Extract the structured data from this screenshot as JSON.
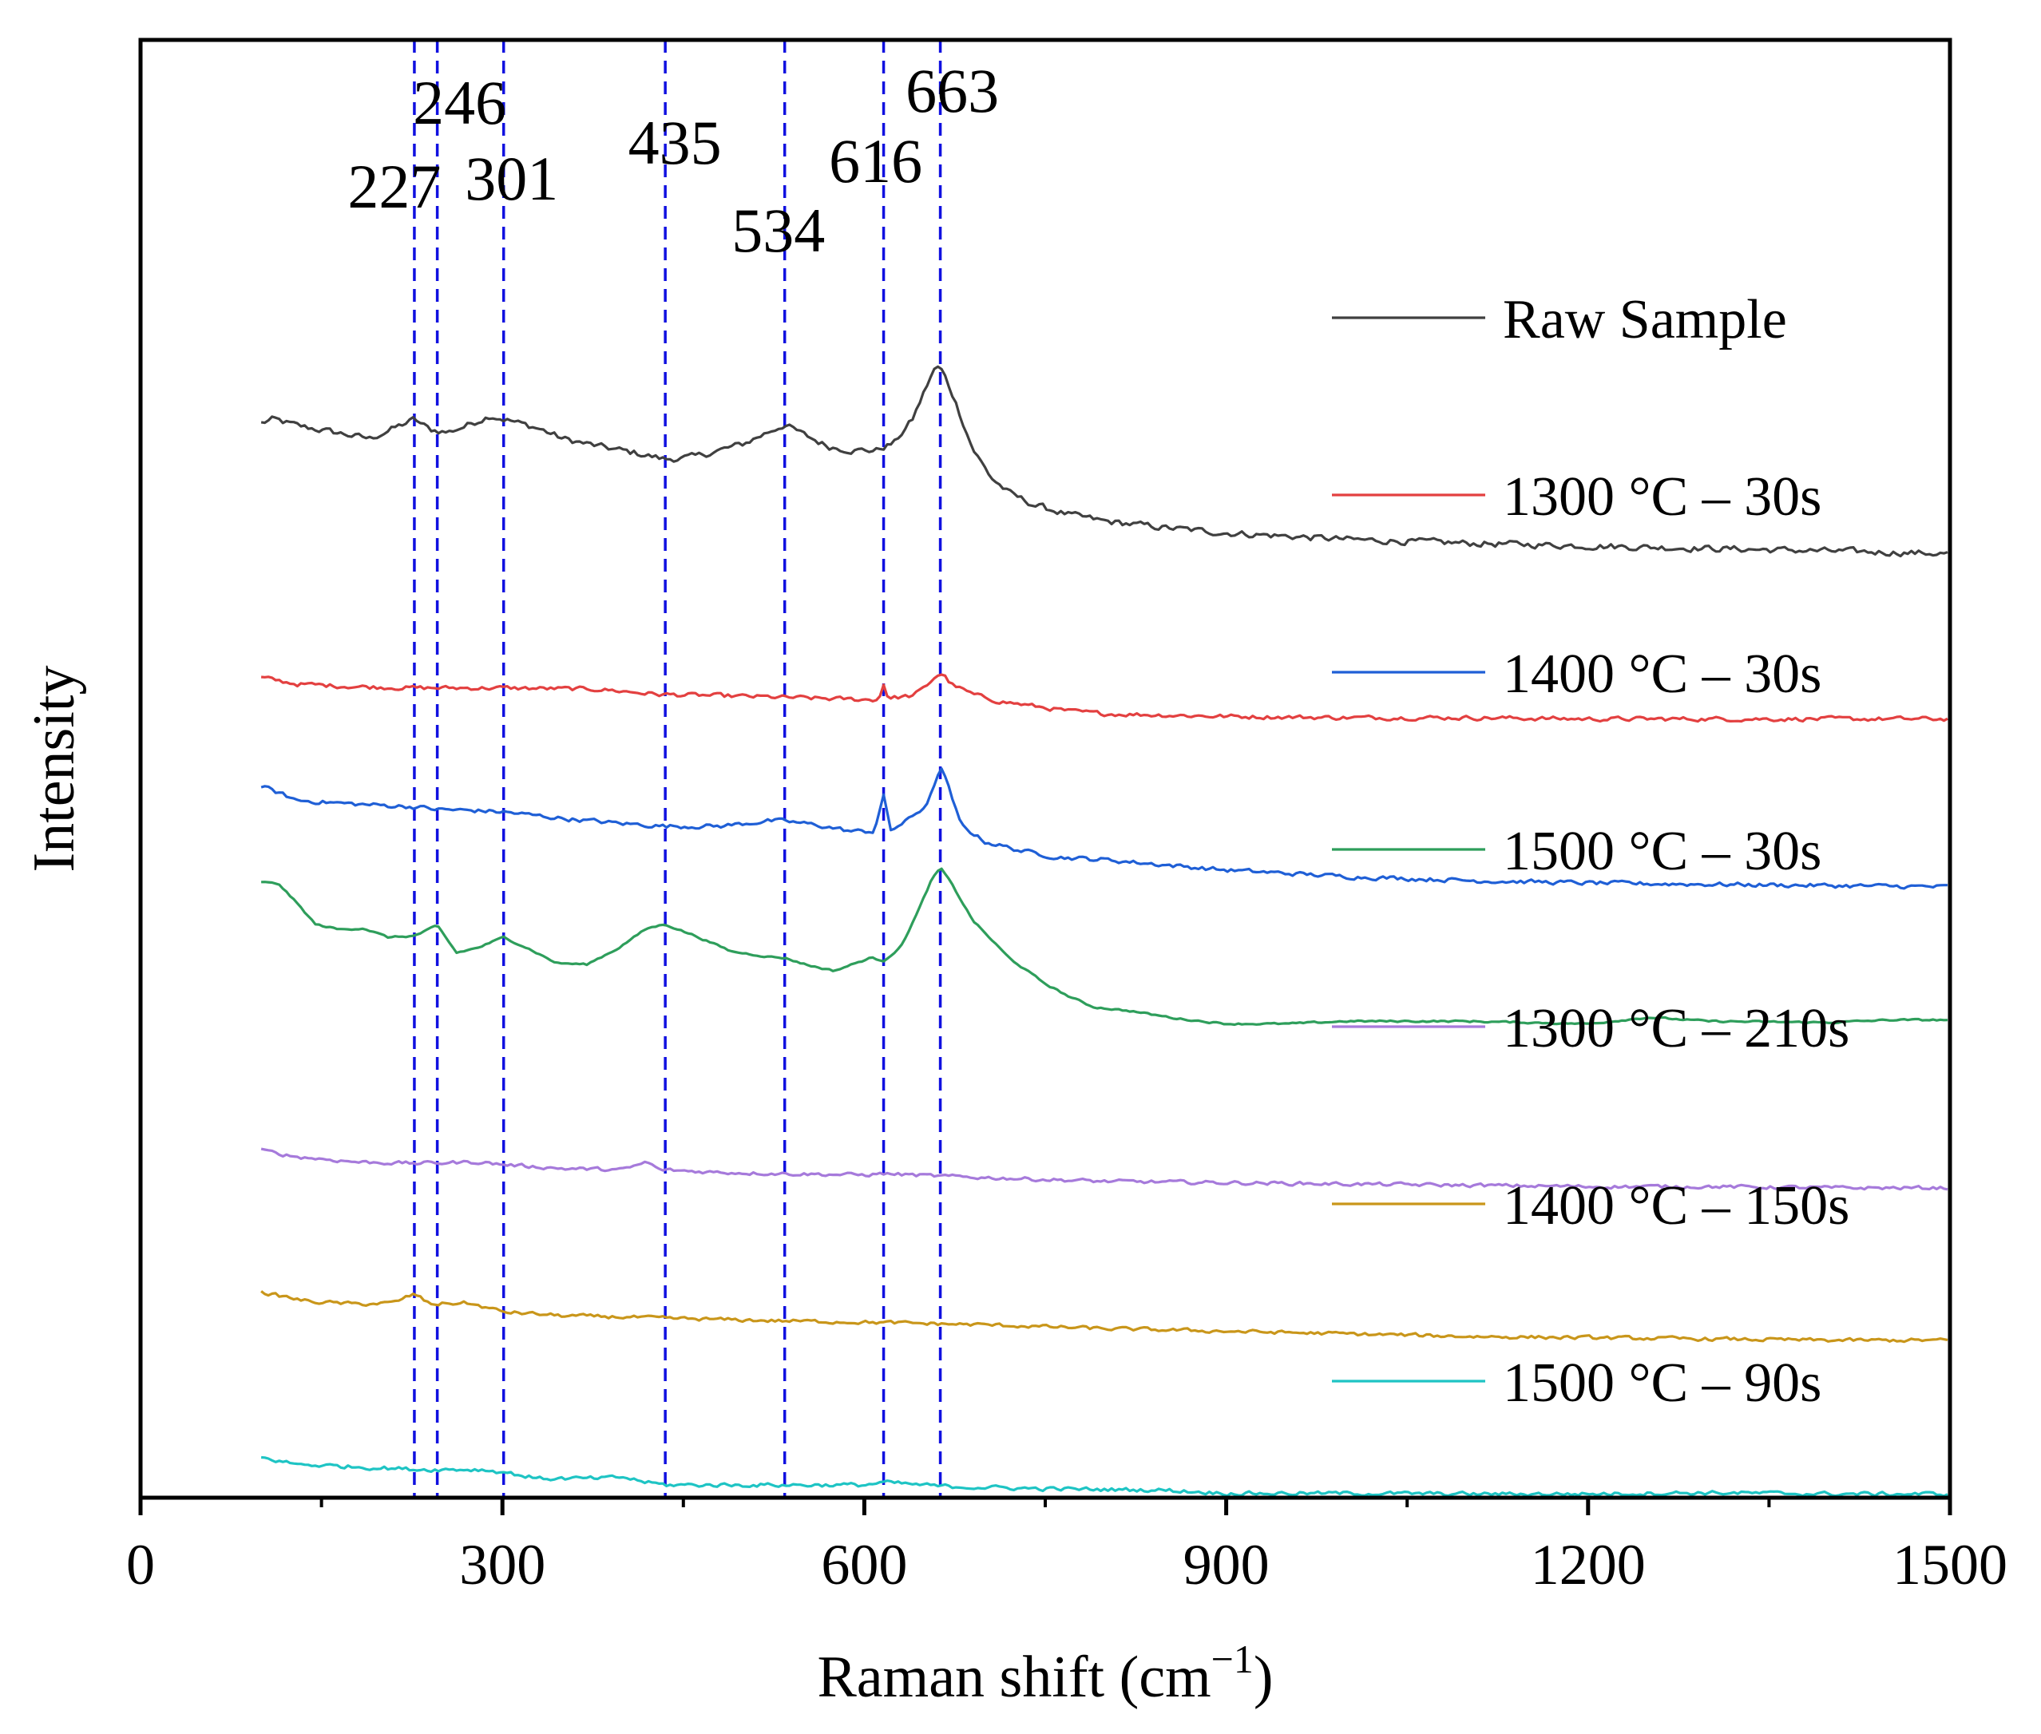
{
  "chart_data": {
    "type": "line",
    "xlabel": "Raman shift (cm",
    "xlabel_sup": "−1",
    "xlabel_close": ")",
    "ylabel": "Intensity",
    "xlim": [
      0,
      1500
    ],
    "ylim": [
      0,
      100
    ],
    "xticks": [
      "0",
      "300",
      "600",
      "900",
      "1200",
      "1500"
    ],
    "xtick_values": [
      0,
      300,
      600,
      900,
      1200,
      1500
    ],
    "grid": false,
    "legend_position": "right",
    "peak_lines": [
      {
        "label": "227",
        "x": 227
      },
      {
        "label": "246",
        "x": 246
      },
      {
        "label": "301",
        "x": 301
      },
      {
        "label": "435",
        "x": 435
      },
      {
        "label": "534",
        "x": 534
      },
      {
        "label": "616",
        "x": 616
      },
      {
        "label": "663",
        "x": 663
      }
    ],
    "series": [
      {
        "name": "Raw Sample",
        "color": "#404040",
        "noise": 0.45,
        "points": [
          [
            100,
            83
          ],
          [
            110,
            83.3
          ],
          [
            130,
            82.8
          ],
          [
            160,
            82.3
          ],
          [
            190,
            81.8
          ],
          [
            215,
            82.8
          ],
          [
            227,
            83.3
          ],
          [
            240,
            82.5
          ],
          [
            255,
            82.3
          ],
          [
            270,
            82.8
          ],
          [
            290,
            83.6
          ],
          [
            310,
            83.1
          ],
          [
            330,
            82.6
          ],
          [
            350,
            81.8
          ],
          [
            380,
            81.2
          ],
          [
            410,
            80.7
          ],
          [
            435,
            80.2
          ],
          [
            460,
            80.4
          ],
          [
            480,
            80.9
          ],
          [
            500,
            81.4
          ],
          [
            520,
            82.3
          ],
          [
            534,
            82.9
          ],
          [
            550,
            82.1
          ],
          [
            570,
            81.2
          ],
          [
            590,
            80.9
          ],
          [
            610,
            80.9
          ],
          [
            625,
            81.5
          ],
          [
            640,
            83.3
          ],
          [
            650,
            85.5
          ],
          [
            656,
            86.8
          ],
          [
            660,
            87.4
          ],
          [
            665,
            87.0
          ],
          [
            675,
            84.8
          ],
          [
            690,
            81.0
          ],
          [
            705,
            78.8
          ],
          [
            720,
            77.6
          ],
          [
            740,
            76.7
          ],
          [
            770,
            75.9
          ],
          [
            800,
            75.4
          ],
          [
            850,
            74.9
          ],
          [
            900,
            74.5
          ],
          [
            1000,
            74.0
          ],
          [
            1100,
            73.7
          ],
          [
            1200,
            73.5
          ],
          [
            1300,
            73.3
          ],
          [
            1400,
            73.1
          ],
          [
            1500,
            72.9
          ]
        ]
      },
      {
        "name": "1300 °C – 30s",
        "color": "#e34040",
        "noise": 0.3,
        "points": [
          [
            100,
            63.3
          ],
          [
            130,
            62.8
          ],
          [
            180,
            62.6
          ],
          [
            230,
            62.5
          ],
          [
            300,
            62.5
          ],
          [
            380,
            62.4
          ],
          [
            430,
            62.0
          ],
          [
            480,
            61.9
          ],
          [
            520,
            61.8
          ],
          [
            560,
            61.7
          ],
          [
            600,
            61.6
          ],
          [
            612,
            61.6
          ],
          [
            616,
            62.8
          ],
          [
            620,
            61.7
          ],
          [
            640,
            61.9
          ],
          [
            650,
            62.5
          ],
          [
            660,
            63.5
          ],
          [
            665,
            63.6
          ],
          [
            672,
            62.8
          ],
          [
            690,
            62.0
          ],
          [
            710,
            61.5
          ],
          [
            740,
            61.1
          ],
          [
            770,
            60.7
          ],
          [
            800,
            60.5
          ],
          [
            900,
            60.3
          ],
          [
            1000,
            60.2
          ],
          [
            1100,
            60.2
          ],
          [
            1200,
            60.1
          ],
          [
            1300,
            60.1
          ],
          [
            1400,
            60.1
          ],
          [
            1500,
            60.1
          ]
        ]
      },
      {
        "name": "1400 °C – 30s",
        "color": "#1f5fd6",
        "noise": 0.3,
        "points": [
          [
            100,
            54.9
          ],
          [
            130,
            53.8
          ],
          [
            180,
            53.5
          ],
          [
            227,
            53.3
          ],
          [
            246,
            53.1
          ],
          [
            280,
            53.0
          ],
          [
            301,
            52.9
          ],
          [
            350,
            52.4
          ],
          [
            400,
            52.0
          ],
          [
            435,
            51.8
          ],
          [
            480,
            51.8
          ],
          [
            520,
            52.2
          ],
          [
            534,
            52.2
          ],
          [
            560,
            51.9
          ],
          [
            590,
            51.4
          ],
          [
            608,
            51.4
          ],
          [
            616,
            54.1
          ],
          [
            622,
            51.5
          ],
          [
            635,
            52.2
          ],
          [
            650,
            53.3
          ],
          [
            658,
            54.8
          ],
          [
            663,
            56.5
          ],
          [
            668,
            55.3
          ],
          [
            680,
            51.9
          ],
          [
            700,
            50.6
          ],
          [
            730,
            49.9
          ],
          [
            760,
            49.4
          ],
          [
            800,
            49.2
          ],
          [
            850,
            48.8
          ],
          [
            900,
            48.4
          ],
          [
            1000,
            47.9
          ],
          [
            1100,
            47.6
          ],
          [
            1200,
            47.4
          ],
          [
            1300,
            47.3
          ],
          [
            1400,
            47.2
          ],
          [
            1500,
            47.1
          ]
        ]
      },
      {
        "name": "1500 °C – 30s",
        "color": "#2e9e5b",
        "noise": 0.12,
        "points": [
          [
            100,
            47.5
          ],
          [
            115,
            47.3
          ],
          [
            130,
            45.8
          ],
          [
            145,
            44.2
          ],
          [
            165,
            43.8
          ],
          [
            185,
            43.9
          ],
          [
            205,
            43.2
          ],
          [
            227,
            43.3
          ],
          [
            246,
            44.1
          ],
          [
            262,
            42.0
          ],
          [
            280,
            42.4
          ],
          [
            301,
            43.2
          ],
          [
            320,
            42.4
          ],
          [
            345,
            41.2
          ],
          [
            370,
            41.1
          ],
          [
            395,
            42.3
          ],
          [
            420,
            43.9
          ],
          [
            435,
            44.2
          ],
          [
            460,
            43.3
          ],
          [
            490,
            42.1
          ],
          [
            520,
            41.7
          ],
          [
            534,
            41.6
          ],
          [
            555,
            41.0
          ],
          [
            575,
            40.6
          ],
          [
            590,
            41.1
          ],
          [
            605,
            41.6
          ],
          [
            616,
            41.4
          ],
          [
            630,
            42.4
          ],
          [
            645,
            45.3
          ],
          [
            655,
            47.5
          ],
          [
            663,
            48.6
          ],
          [
            672,
            47.4
          ],
          [
            690,
            44.5
          ],
          [
            720,
            41.6
          ],
          [
            750,
            39.6
          ],
          [
            770,
            38.6
          ],
          [
            790,
            37.8
          ],
          [
            820,
            37.5
          ],
          [
            860,
            36.9
          ],
          [
            900,
            36.5
          ],
          [
            950,
            36.5
          ],
          [
            1000,
            36.7
          ],
          [
            1100,
            36.7
          ],
          [
            1200,
            36.5
          ],
          [
            1250,
            37.0
          ],
          [
            1300,
            36.7
          ],
          [
            1400,
            36.6
          ],
          [
            1450,
            36.8
          ],
          [
            1500,
            36.8
          ]
        ]
      },
      {
        "name": "1300 °C – 210s",
        "color": "#a67adb",
        "noise": 0.25,
        "points": [
          [
            100,
            26.7
          ],
          [
            130,
            26.2
          ],
          [
            180,
            25.8
          ],
          [
            227,
            25.7
          ],
          [
            280,
            25.8
          ],
          [
            301,
            25.6
          ],
          [
            350,
            25.3
          ],
          [
            400,
            25.2
          ],
          [
            420,
            25.8
          ],
          [
            430,
            25.2
          ],
          [
            480,
            25.0
          ],
          [
            534,
            24.9
          ],
          [
            600,
            24.8
          ],
          [
            616,
            24.9
          ],
          [
            663,
            24.7
          ],
          [
            700,
            24.6
          ],
          [
            800,
            24.3
          ],
          [
            900,
            24.2
          ],
          [
            1000,
            24.1
          ],
          [
            1100,
            24.0
          ],
          [
            1200,
            23.9
          ],
          [
            1300,
            23.9
          ],
          [
            1400,
            23.8
          ],
          [
            1500,
            23.8
          ]
        ]
      },
      {
        "name": "1400 °C – 150s",
        "color": "#c9961a",
        "noise": 0.25,
        "points": [
          [
            100,
            15.7
          ],
          [
            140,
            15.0
          ],
          [
            180,
            14.8
          ],
          [
            210,
            14.9
          ],
          [
            227,
            15.6
          ],
          [
            240,
            14.8
          ],
          [
            270,
            14.9
          ],
          [
            301,
            14.2
          ],
          [
            350,
            13.9
          ],
          [
            400,
            13.8
          ],
          [
            435,
            13.7
          ],
          [
            534,
            13.5
          ],
          [
            600,
            13.4
          ],
          [
            700,
            13.2
          ],
          [
            800,
            12.9
          ],
          [
            900,
            12.7
          ],
          [
            1000,
            12.5
          ],
          [
            1100,
            12.3
          ],
          [
            1200,
            12.2
          ],
          [
            1300,
            12.1
          ],
          [
            1400,
            12.0
          ],
          [
            1500,
            12.0
          ]
        ]
      },
      {
        "name": "1500 °C – 90s",
        "color": "#1ec4c4",
        "noise": 0.28,
        "points": [
          [
            100,
            2.9
          ],
          [
            130,
            2.4
          ],
          [
            180,
            2.2
          ],
          [
            230,
            2.0
          ],
          [
            280,
            2.0
          ],
          [
            301,
            1.8
          ],
          [
            330,
            1.3
          ],
          [
            380,
            1.3
          ],
          [
            400,
            1.4
          ],
          [
            420,
            1.0
          ],
          [
            435,
            0.8
          ],
          [
            500,
            0.8
          ],
          [
            600,
            0.8
          ],
          [
            616,
            1.0
          ],
          [
            663,
            0.7
          ],
          [
            750,
            0.5
          ],
          [
            850,
            0.4
          ],
          [
            900,
            0.15
          ],
          [
            1000,
            0.15
          ],
          [
            1100,
            0.1
          ],
          [
            1200,
            0.1
          ],
          [
            1300,
            0.2
          ],
          [
            1400,
            0.1
          ],
          [
            1500,
            0.1
          ]
        ]
      }
    ]
  }
}
